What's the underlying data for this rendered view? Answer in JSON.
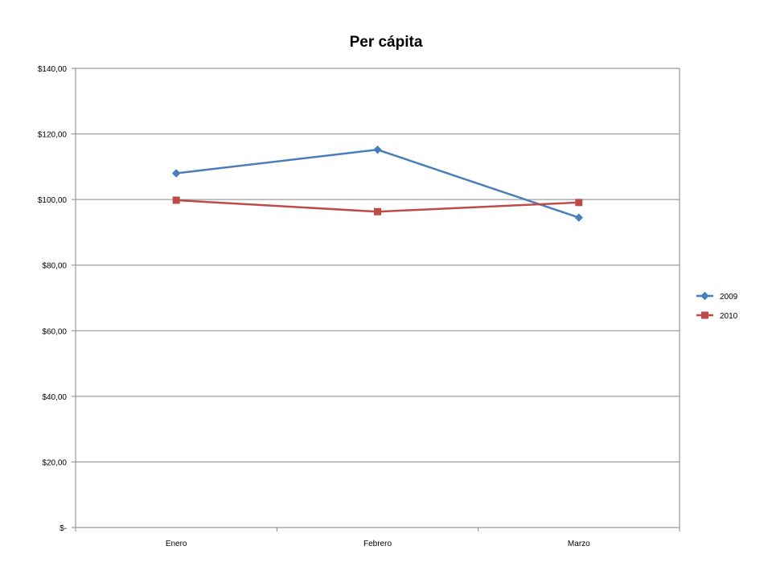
{
  "chart_data": {
    "type": "line",
    "title": "Per cápita",
    "xlabel": "",
    "ylabel": "",
    "categories": [
      "Enero",
      "Febrero",
      "Marzo"
    ],
    "ylim": [
      0,
      140
    ],
    "ytick_values": [
      0,
      20,
      40,
      60,
      80,
      100,
      120,
      140
    ],
    "ytick_labels": [
      "$-",
      "$20,00",
      "$40,00",
      "$60,00",
      "$80,00",
      "$100,00",
      "$120,00",
      "$140,00"
    ],
    "grid": true,
    "legend": "right",
    "series": [
      {
        "name": "2009",
        "values": [
          108,
          115.2,
          94.5
        ],
        "color": "#4A7EBB",
        "marker": "diamond"
      },
      {
        "name": "2010",
        "values": [
          99.8,
          96.3,
          99.1
        ],
        "color": "#BE4B48",
        "marker": "square"
      }
    ]
  }
}
